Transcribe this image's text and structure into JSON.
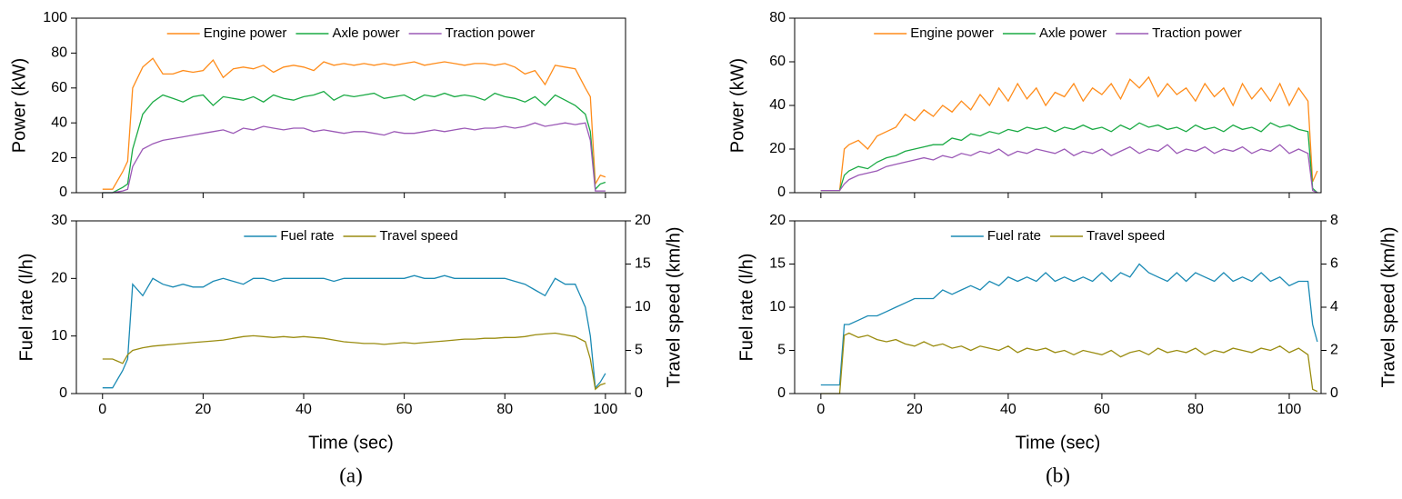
{
  "chart_data": [
    {
      "type": "line",
      "ylabel": "Power (kW)",
      "legend": "upper center",
      "xlim": [
        -5.2,
        104
      ],
      "xticks": [
        0,
        20,
        40,
        60,
        80,
        100
      ],
      "ylim": [
        0,
        100
      ],
      "yticks": [
        0,
        20,
        40,
        60,
        80,
        100
      ],
      "x": [
        0,
        2,
        4,
        5,
        6,
        8,
        10,
        12,
        14,
        16,
        18,
        20,
        22,
        24,
        26,
        28,
        30,
        32,
        34,
        36,
        38,
        40,
        42,
        44,
        46,
        48,
        50,
        52,
        54,
        56,
        58,
        60,
        62,
        64,
        66,
        68,
        70,
        72,
        74,
        76,
        78,
        80,
        82,
        84,
        86,
        88,
        90,
        92,
        94,
        96,
        97,
        98,
        99,
        100
      ],
      "series": [
        {
          "name": "Engine power",
          "color": "#ff8c1a",
          "values": [
            2,
            2,
            12,
            18,
            60,
            72,
            77,
            68,
            68,
            70,
            69,
            70,
            76,
            66,
            71,
            72,
            71,
            73,
            69,
            72,
            73,
            72,
            70,
            75,
            73,
            74,
            73,
            74,
            73,
            74,
            73,
            74,
            75,
            73,
            74,
            75,
            74,
            73,
            74,
            74,
            73,
            74,
            72,
            68,
            70,
            62,
            73,
            72,
            71,
            60,
            55,
            5,
            10,
            9
          ]
        },
        {
          "name": "Axle power",
          "color": "#1aaa44",
          "values": [
            0,
            0,
            3,
            5,
            25,
            45,
            52,
            56,
            54,
            52,
            55,
            56,
            50,
            55,
            54,
            53,
            55,
            52,
            56,
            54,
            53,
            55,
            56,
            58,
            53,
            56,
            55,
            56,
            57,
            54,
            55,
            56,
            53,
            56,
            55,
            57,
            55,
            56,
            55,
            53,
            57,
            55,
            54,
            52,
            55,
            50,
            56,
            53,
            50,
            45,
            35,
            2,
            5,
            6
          ]
        },
        {
          "name": "Traction power",
          "color": "#9b59b6",
          "values": [
            0,
            0,
            1,
            2,
            15,
            25,
            28,
            30,
            31,
            32,
            33,
            34,
            35,
            36,
            34,
            37,
            36,
            38,
            37,
            36,
            37,
            37,
            35,
            36,
            35,
            34,
            35,
            35,
            34,
            33,
            35,
            34,
            34,
            35,
            36,
            35,
            36,
            37,
            36,
            37,
            37,
            38,
            37,
            38,
            40,
            38,
            39,
            40,
            39,
            40,
            30,
            1,
            1,
            1
          ]
        }
      ]
    },
    {
      "type": "line",
      "ylabel": "Fuel rate (l/h)",
      "y2label": "Travel speed (km/h)",
      "xlabel": "Time (sec)",
      "caption": "(a)",
      "legend": "upper center",
      "xlim": [
        -5.2,
        104
      ],
      "xticks": [
        0,
        20,
        40,
        60,
        80,
        100
      ],
      "ylim": [
        0,
        30
      ],
      "yticks": [
        0,
        10,
        20,
        30
      ],
      "y2lim": [
        0,
        20
      ],
      "y2ticks": [
        0,
        5,
        10,
        15,
        20
      ],
      "x": [
        0,
        2,
        4,
        5,
        6,
        8,
        10,
        12,
        14,
        16,
        18,
        20,
        22,
        24,
        26,
        28,
        30,
        32,
        34,
        36,
        38,
        40,
        42,
        44,
        46,
        48,
        50,
        52,
        54,
        56,
        58,
        60,
        62,
        64,
        66,
        68,
        70,
        72,
        74,
        76,
        78,
        80,
        82,
        84,
        86,
        88,
        90,
        92,
        94,
        96,
        97,
        98,
        99,
        100
      ],
      "series": [
        {
          "name": "Fuel rate",
          "color": "#1a8ab4",
          "values": [
            1,
            1,
            4,
            6,
            19,
            17,
            20,
            19,
            18.5,
            19,
            18.5,
            18.5,
            19.5,
            20,
            19.5,
            19,
            20,
            20,
            19.5,
            20,
            20,
            20,
            20,
            20,
            19.5,
            20,
            20,
            20,
            20,
            20,
            20,
            20,
            20.5,
            20,
            20,
            20.5,
            20,
            20,
            20,
            20,
            20,
            20,
            19.5,
            19,
            18,
            17,
            20,
            19,
            19,
            15,
            10,
            1,
            2,
            3.5
          ]
        },
        {
          "name": "Travel speed",
          "color": "#9a8c10",
          "axis": "y2",
          "values": [
            4,
            4,
            3.5,
            4.5,
            5,
            5.3,
            5.5,
            5.6,
            5.7,
            5.8,
            5.9,
            6,
            6.1,
            6.2,
            6.4,
            6.6,
            6.7,
            6.6,
            6.5,
            6.6,
            6.5,
            6.6,
            6.5,
            6.4,
            6.2,
            6,
            5.9,
            5.8,
            5.8,
            5.7,
            5.8,
            5.9,
            5.8,
            5.9,
            6,
            6.1,
            6.2,
            6.3,
            6.3,
            6.4,
            6.4,
            6.5,
            6.5,
            6.6,
            6.8,
            6.9,
            7,
            6.8,
            6.6,
            6,
            4,
            0.5,
            1,
            1.2
          ]
        }
      ]
    },
    {
      "type": "line",
      "ylabel": "Power (kW)",
      "legend": "upper center",
      "xlim": [
        -5.6,
        106.8
      ],
      "xticks": [
        0,
        20,
        40,
        60,
        80,
        100
      ],
      "ylim": [
        0,
        80
      ],
      "yticks": [
        0,
        20,
        40,
        60,
        80
      ],
      "x": [
        0,
        2,
        4,
        5,
        6,
        8,
        10,
        12,
        14,
        16,
        18,
        20,
        22,
        24,
        26,
        28,
        30,
        32,
        34,
        36,
        38,
        40,
        42,
        44,
        46,
        48,
        50,
        52,
        54,
        56,
        58,
        60,
        62,
        64,
        66,
        68,
        70,
        72,
        74,
        76,
        78,
        80,
        82,
        84,
        86,
        88,
        90,
        92,
        94,
        96,
        98,
        100,
        102,
        104,
        105,
        106
      ],
      "series": [
        {
          "name": "Engine power",
          "color": "#ff8c1a",
          "values": [
            1,
            1,
            1,
            20,
            22,
            24,
            20,
            26,
            28,
            30,
            36,
            33,
            38,
            35,
            40,
            37,
            42,
            38,
            45,
            40,
            48,
            42,
            50,
            43,
            48,
            40,
            46,
            44,
            50,
            42,
            48,
            45,
            50,
            43,
            52,
            48,
            53,
            44,
            50,
            45,
            48,
            42,
            50,
            44,
            48,
            40,
            50,
            43,
            48,
            42,
            50,
            40,
            48,
            42,
            5,
            10
          ]
        },
        {
          "name": "Axle power",
          "color": "#1aaa44",
          "values": [
            1,
            1,
            1,
            8,
            10,
            12,
            11,
            14,
            16,
            17,
            19,
            20,
            21,
            22,
            22,
            25,
            24,
            27,
            26,
            28,
            27,
            29,
            28,
            30,
            29,
            30,
            28,
            30,
            29,
            31,
            29,
            30,
            28,
            31,
            29,
            32,
            30,
            31,
            29,
            30,
            28,
            31,
            29,
            30,
            28,
            31,
            29,
            30,
            28,
            32,
            30,
            31,
            29,
            28,
            2,
            0
          ]
        },
        {
          "name": "Traction power",
          "color": "#9b59b6",
          "values": [
            1,
            1,
            1,
            4,
            6,
            8,
            9,
            10,
            12,
            13,
            14,
            15,
            16,
            15,
            17,
            16,
            18,
            17,
            19,
            18,
            20,
            17,
            19,
            18,
            20,
            19,
            18,
            20,
            17,
            19,
            18,
            20,
            17,
            19,
            21,
            18,
            20,
            19,
            22,
            18,
            20,
            19,
            21,
            18,
            20,
            19,
            21,
            18,
            20,
            19,
            22,
            18,
            20,
            18,
            1,
            0
          ]
        }
      ]
    },
    {
      "type": "line",
      "ylabel": "Fuel rate (l/h)",
      "y2label": "Travel speed (km/h)",
      "xlabel": "Time (sec)",
      "caption": "(b)",
      "legend": "upper center",
      "xlim": [
        -5.6,
        106.8
      ],
      "xticks": [
        0,
        20,
        40,
        60,
        80,
        100
      ],
      "ylim": [
        0,
        20
      ],
      "yticks": [
        0,
        5,
        10,
        15,
        20
      ],
      "y2lim": [
        0,
        8
      ],
      "y2ticks": [
        0,
        2,
        4,
        6,
        8
      ],
      "x": [
        0,
        2,
        4,
        5,
        6,
        8,
        10,
        12,
        14,
        16,
        18,
        20,
        22,
        24,
        26,
        28,
        30,
        32,
        34,
        36,
        38,
        40,
        42,
        44,
        46,
        48,
        50,
        52,
        54,
        56,
        58,
        60,
        62,
        64,
        66,
        68,
        70,
        72,
        74,
        76,
        78,
        80,
        82,
        84,
        86,
        88,
        90,
        92,
        94,
        96,
        98,
        100,
        102,
        104,
        105,
        106
      ],
      "series": [
        {
          "name": "Fuel rate",
          "color": "#1a8ab4",
          "values": [
            1,
            1,
            1,
            8,
            8,
            8.5,
            9,
            9,
            9.5,
            10,
            10.5,
            11,
            11,
            11,
            12,
            11.5,
            12,
            12.5,
            12,
            13,
            12.5,
            13.5,
            13,
            13.5,
            13,
            14,
            13,
            13.5,
            13,
            13.5,
            13,
            14,
            13,
            14,
            13.5,
            15,
            14,
            13.5,
            13,
            14,
            13,
            14,
            13.5,
            13,
            14,
            13,
            13.5,
            13,
            14,
            13,
            13.5,
            12.5,
            13,
            13,
            8,
            6
          ]
        },
        {
          "name": "Travel speed",
          "color": "#9a8c10",
          "axis": "y2",
          "values": [
            0,
            0,
            0,
            2.7,
            2.8,
            2.6,
            2.7,
            2.5,
            2.4,
            2.5,
            2.3,
            2.2,
            2.4,
            2.2,
            2.3,
            2.1,
            2.2,
            2,
            2.2,
            2.1,
            2,
            2.2,
            1.9,
            2.1,
            2,
            2.1,
            1.9,
            2,
            1.8,
            2,
            1.9,
            1.8,
            2,
            1.7,
            1.9,
            2,
            1.8,
            2.1,
            1.9,
            2,
            1.9,
            2.1,
            1.8,
            2,
            1.9,
            2.1,
            2,
            1.9,
            2.1,
            2,
            2.2,
            1.9,
            2.1,
            1.8,
            0.2,
            0.1
          ]
        }
      ]
    }
  ]
}
